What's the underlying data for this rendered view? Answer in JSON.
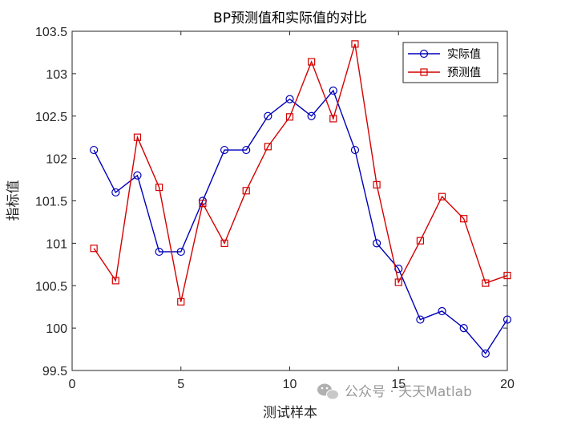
{
  "chart_data": {
    "type": "line",
    "title": "BP预测值和实际值的对比",
    "xlabel": "测试样本",
    "ylabel": "指标值",
    "xlim": [
      0,
      20
    ],
    "ylim": [
      99.5,
      103.5
    ],
    "xticks": [
      "0",
      "5",
      "10",
      "15",
      "20"
    ],
    "yticks": [
      "99.5",
      "100",
      "100.5",
      "101",
      "101.5",
      "102",
      "102.5",
      "103",
      "103.5"
    ],
    "grid": false,
    "legend_position": "top-right",
    "x": [
      1,
      2,
      3,
      4,
      5,
      6,
      7,
      8,
      9,
      10,
      11,
      12,
      13,
      14,
      15,
      16,
      17,
      18,
      19,
      20
    ],
    "series": [
      {
        "name": "实际值",
        "color": "#0000b8",
        "marker": "circle",
        "values": [
          102.1,
          101.6,
          101.8,
          100.9,
          100.9,
          101.5,
          102.1,
          102.1,
          102.5,
          102.7,
          102.5,
          102.8,
          102.1,
          101.0,
          100.7,
          100.1,
          100.2,
          100.0,
          99.7,
          100.1
        ]
      },
      {
        "name": "预测值",
        "color": "#d40000",
        "marker": "square",
        "values": [
          100.94,
          100.56,
          102.25,
          101.66,
          100.31,
          101.47,
          101.0,
          101.62,
          102.14,
          102.49,
          103.14,
          102.47,
          103.35,
          101.69,
          100.54,
          101.03,
          101.55,
          101.29,
          100.53,
          100.62
        ]
      }
    ]
  },
  "watermark": {
    "text": "公众号 · 天天Matlab",
    "icon": "wechat-icon"
  }
}
